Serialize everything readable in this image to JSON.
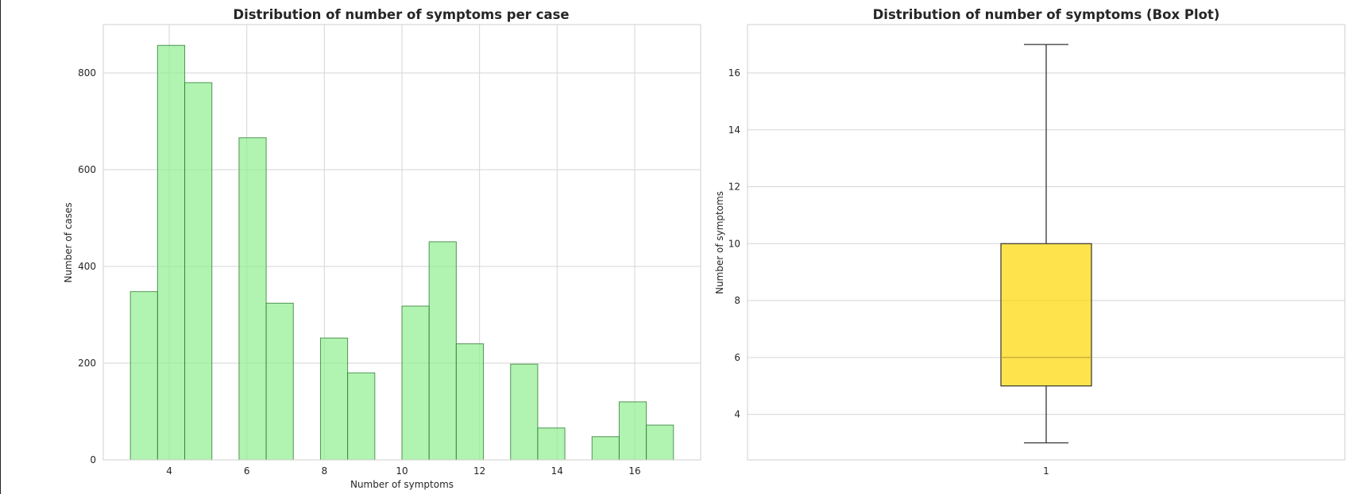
{
  "chart_data": [
    {
      "type": "bar",
      "title": "Distribution of number of symptoms per case",
      "xlabel": "Number of symptoms",
      "ylabel": "Number of cases",
      "xlim": [
        2.3,
        17.7
      ],
      "ylim": [
        0,
        900
      ],
      "xticks": [
        4,
        6,
        8,
        10,
        12,
        14,
        16
      ],
      "yticks": [
        0,
        200,
        400,
        600,
        800
      ],
      "grid": true,
      "bins": [
        {
          "x0": 3.0,
          "x1": 3.7,
          "value": 348
        },
        {
          "x0": 3.7,
          "x1": 4.4,
          "value": 857
        },
        {
          "x0": 4.4,
          "x1": 5.1,
          "value": 780
        },
        {
          "x0": 5.8,
          "x1": 6.5,
          "value": 666
        },
        {
          "x0": 6.5,
          "x1": 7.2,
          "value": 324
        },
        {
          "x0": 7.9,
          "x1": 8.6,
          "value": 252
        },
        {
          "x0": 8.6,
          "x1": 9.3,
          "value": 180
        },
        {
          "x0": 10.0,
          "x1": 10.7,
          "value": 318
        },
        {
          "x0": 10.7,
          "x1": 11.4,
          "value": 451
        },
        {
          "x0": 11.4,
          "x1": 12.1,
          "value": 240
        },
        {
          "x0": 12.8,
          "x1": 13.5,
          "value": 198
        },
        {
          "x0": 13.5,
          "x1": 14.2,
          "value": 66
        },
        {
          "x0": 14.9,
          "x1": 15.6,
          "value": 48
        },
        {
          "x0": 15.6,
          "x1": 16.3,
          "value": 120
        },
        {
          "x0": 16.3,
          "x1": 17.0,
          "value": 72
        }
      ],
      "colors": {
        "fill": "#90ee90",
        "edge": "#2e7d32"
      }
    },
    {
      "type": "box",
      "title": "Distribution of number of symptoms (Box Plot)",
      "xlabel": "",
      "ylabel": "Number of symptoms",
      "ylim": [
        2.4,
        17.7
      ],
      "yticks": [
        4,
        6,
        8,
        10,
        12,
        14,
        16
      ],
      "xticks": [
        "1"
      ],
      "grid": true,
      "box": {
        "min": 3,
        "q1": 5,
        "median": 6,
        "q3": 10,
        "max": 17
      },
      "colors": {
        "fill": "#ffd700"
      }
    }
  ]
}
